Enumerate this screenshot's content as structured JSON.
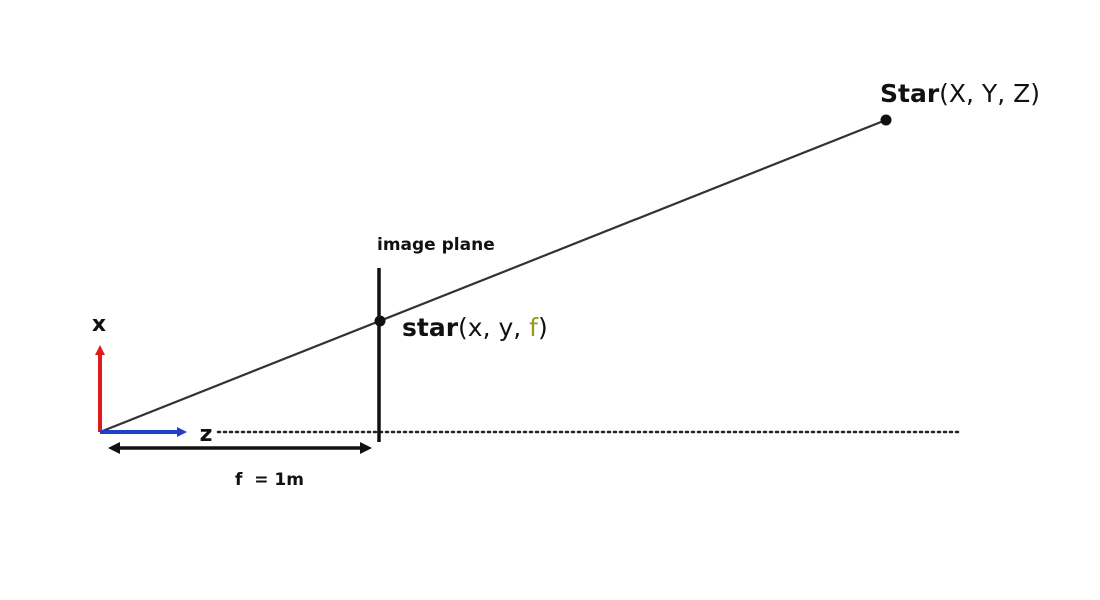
{
  "colors": {
    "background": "#ffffff",
    "ray": "#333333",
    "point": "#111111",
    "x_axis": "#e01b1b",
    "z_axis": "#1f3fc4",
    "focal_highlight": "#9a9a1a",
    "plane": "#111111"
  },
  "labels": {
    "x_axis": "x",
    "z_axis": "z",
    "image_plane": "image plane",
    "focal": "f  = 1m",
    "star_world_name": "Star",
    "star_world_coords": "(X, Y, Z)",
    "star_image_name": "star",
    "star_image_coords_prefix": "(x, y, ",
    "star_image_f": "f",
    "star_image_coords_suffix": ")"
  }
}
